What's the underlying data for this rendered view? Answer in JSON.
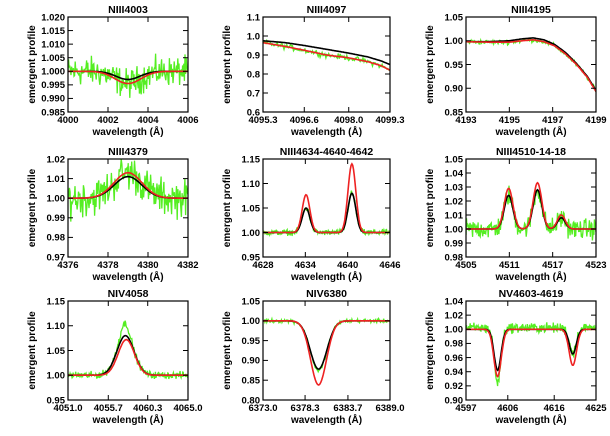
{
  "colors": {
    "observed": "#55ee22",
    "model_black": "#000000",
    "model_red": "#ee2222",
    "frame": "#000000",
    "background": "#ffffff"
  },
  "chart_data": [
    {
      "type": "line",
      "title": "NIII4003",
      "xlabel": "wavelength (Å)",
      "ylabel": "emergent profile",
      "xlim": [
        4000,
        4006
      ],
      "ylim": [
        0.985,
        1.02
      ],
      "xticks": [
        4000,
        4002,
        4004,
        4006
      ],
      "xtick_labels": [
        "4000",
        "4002",
        "4004",
        "4006"
      ],
      "yticks": [
        0.985,
        0.99,
        0.995,
        1.0,
        1.005,
        1.01,
        1.015,
        1.02
      ],
      "ytick_labels": [
        "0.985",
        "0.990",
        "0.995",
        "1.000",
        "1.005",
        "1.010",
        "1.015",
        "1.020"
      ],
      "series": [
        {
          "color": "black",
          "lines": [
            {
              "kind": "gauss",
              "amp": -0.003,
              "center": 4003.0,
              "sigma": 0.6
            }
          ]
        },
        {
          "color": "red",
          "lines": [
            {
              "kind": "gauss",
              "amp": -0.0045,
              "center": 4003.0,
              "sigma": 0.65
            }
          ]
        },
        {
          "color": "green",
          "kind": "noisy",
          "of": "red",
          "noise": 0.0045,
          "dx": 0.03
        }
      ]
    },
    {
      "type": "line",
      "title": "NIII4097",
      "xlabel": "wavelength (Å)",
      "ylabel": "emergent profile",
      "xlim": [
        4095.3,
        4099.3
      ],
      "ylim": [
        0.6,
        1.1
      ],
      "xticks": [
        4095.3,
        4096.6,
        4098.0,
        4099.3
      ],
      "xtick_labels": [
        "4095.3",
        "4096.6",
        "4098.0",
        "4099.3"
      ],
      "yticks": [
        0.6,
        0.7,
        0.8,
        0.9,
        1.0,
        1.1
      ],
      "ytick_labels": [
        "0.6",
        "0.7",
        "0.8",
        "0.9",
        "1.0",
        "1.1"
      ],
      "series": [
        {
          "color": "black",
          "x": [
            4095.3,
            4096.0,
            4096.6,
            4097.3,
            4098.0,
            4098.6,
            4099.0,
            4099.3
          ],
          "y": [
            0.975,
            0.965,
            0.95,
            0.93,
            0.91,
            0.89,
            0.87,
            0.85
          ]
        },
        {
          "color": "red",
          "x": [
            4095.3,
            4096.0,
            4096.6,
            4097.3,
            4098.0,
            4098.6,
            4099.0,
            4099.3
          ],
          "y": [
            0.965,
            0.945,
            0.925,
            0.9,
            0.885,
            0.865,
            0.845,
            0.82
          ]
        },
        {
          "color": "green",
          "kind": "noisy",
          "of": "red",
          "noise": 0.012,
          "dx": 0.03
        }
      ]
    },
    {
      "type": "line",
      "title": "NIII4195",
      "xlabel": "wavelength (Å)",
      "ylabel": "emergent profile",
      "xlim": [
        4193,
        4199
      ],
      "ylim": [
        0.85,
        1.05
      ],
      "xticks": [
        4193,
        4195,
        4197,
        4199
      ],
      "xtick_labels": [
        "4193",
        "4195",
        "4197",
        "4199"
      ],
      "yticks": [
        0.85,
        0.9,
        0.95,
        1.0,
        1.05
      ],
      "ytick_labels": [
        "0.85",
        "0.90",
        "0.95",
        "1.00",
        "1.05"
      ],
      "series": [
        {
          "color": "black",
          "x": [
            4193,
            4194,
            4195,
            4195.6,
            4196.1,
            4196.6,
            4197.1,
            4197.6,
            4198.1,
            4198.6,
            4199
          ],
          "y": [
            0.998,
            0.998,
            1.0,
            1.004,
            1.006,
            1.002,
            0.992,
            0.975,
            0.952,
            0.925,
            0.895
          ]
        },
        {
          "color": "red",
          "x": [
            4193,
            4194,
            4195,
            4195.6,
            4196.1,
            4196.6,
            4197.1,
            4197.6,
            4198.1,
            4198.6,
            4199
          ],
          "y": [
            0.998,
            0.997,
            0.997,
            1.0,
            1.002,
            0.998,
            0.989,
            0.972,
            0.95,
            0.923,
            0.893
          ]
        },
        {
          "color": "green",
          "kind": "noisy",
          "of": "red",
          "noise": 0.004,
          "dx": 0.04
        }
      ]
    },
    {
      "type": "line",
      "title": "NIII4379",
      "xlabel": "wavelength (Å)",
      "ylabel": "emergent profile",
      "xlim": [
        4376,
        4382
      ],
      "ylim": [
        0.97,
        1.02
      ],
      "xticks": [
        4376,
        4378,
        4380,
        4382
      ],
      "xtick_labels": [
        "4376",
        "4378",
        "4380",
        "4382"
      ],
      "yticks": [
        0.97,
        0.98,
        0.99,
        1.0,
        1.01,
        1.02
      ],
      "ytick_labels": [
        "0.97",
        "0.98",
        "0.99",
        "1.00",
        "1.01",
        "1.02"
      ],
      "series": [
        {
          "color": "black",
          "lines": [
            {
              "kind": "gauss",
              "amp": 0.011,
              "center": 4379.0,
              "sigma": 0.7
            }
          ]
        },
        {
          "color": "red",
          "lines": [
            {
              "kind": "gauss",
              "amp": 0.013,
              "center": 4379.0,
              "sigma": 0.7
            }
          ]
        },
        {
          "color": "green",
          "kind": "noisy",
          "of": "red",
          "noise": 0.008,
          "dx": 0.035
        }
      ]
    },
    {
      "type": "line",
      "title": "NIII4634-4640-4642",
      "xlabel": "wavelength (Å)",
      "ylabel": "emergent profile",
      "xlim": [
        4628,
        4646
      ],
      "ylim": [
        0.95,
        1.15
      ],
      "xticks": [
        4628,
        4634,
        4640,
        4646
      ],
      "xtick_labels": [
        "4628",
        "4634",
        "4640",
        "4646"
      ],
      "yticks": [
        0.95,
        1.0,
        1.05,
        1.1,
        1.15
      ],
      "ytick_labels": [
        "0.95",
        "1.00",
        "1.05",
        "1.10",
        "1.15"
      ],
      "series": [
        {
          "color": "black",
          "lines": [
            {
              "kind": "gauss",
              "amp": 0.05,
              "center": 4634.1,
              "sigma": 0.55
            },
            {
              "kind": "gauss",
              "amp": 0.08,
              "center": 4640.6,
              "sigma": 0.55
            }
          ]
        },
        {
          "color": "red",
          "lines": [
            {
              "kind": "gauss",
              "amp": 0.077,
              "center": 4634.1,
              "sigma": 0.55
            },
            {
              "kind": "gauss",
              "amp": 0.14,
              "center": 4640.6,
              "sigma": 0.55
            }
          ]
        },
        {
          "color": "green",
          "kind": "noisy",
          "of": "black",
          "noise": 0.005,
          "dx": 0.07
        }
      ]
    },
    {
      "type": "line",
      "title": "NIII4510-14-18",
      "xlabel": "wavelength (Å)",
      "ylabel": "emergent profile",
      "xlim": [
        4505,
        4523
      ],
      "ylim": [
        0.98,
        1.05
      ],
      "xticks": [
        4505,
        4511,
        4517,
        4523
      ],
      "xtick_labels": [
        "4505",
        "4511",
        "4517",
        "4523"
      ],
      "yticks": [
        0.98,
        0.99,
        1.0,
        1.01,
        1.02,
        1.03,
        1.04,
        1.05
      ],
      "ytick_labels": [
        "0.98",
        "0.99",
        "1.00",
        "1.01",
        "1.02",
        "1.03",
        "1.04",
        "1.05"
      ],
      "series": [
        {
          "color": "black",
          "lines": [
            {
              "kind": "gauss",
              "amp": 0.024,
              "center": 4510.9,
              "sigma": 0.6
            },
            {
              "kind": "gauss",
              "amp": 0.028,
              "center": 4514.9,
              "sigma": 0.6
            },
            {
              "kind": "gauss",
              "amp": 0.008,
              "center": 4518.2,
              "sigma": 0.55
            }
          ]
        },
        {
          "color": "red",
          "lines": [
            {
              "kind": "gauss",
              "amp": 0.029,
              "center": 4510.9,
              "sigma": 0.6
            },
            {
              "kind": "gauss",
              "amp": 0.033,
              "center": 4514.9,
              "sigma": 0.6
            },
            {
              "kind": "gauss",
              "amp": 0.01,
              "center": 4518.2,
              "sigma": 0.55
            }
          ]
        },
        {
          "color": "green",
          "kind": "noisy",
          "of": "black",
          "noise": 0.006,
          "dx": 0.07
        }
      ]
    },
    {
      "type": "line",
      "title": "NIV4058",
      "xlabel": "wavelength (Å)",
      "ylabel": "emergent profile",
      "xlim": [
        4051.0,
        4065.0
      ],
      "ylim": [
        0.95,
        1.15
      ],
      "xticks": [
        4051.0,
        4055.7,
        4060.3,
        4065.0
      ],
      "xtick_labels": [
        "4051.0",
        "4055.7",
        "4060.3",
        "4065.0"
      ],
      "yticks": [
        0.95,
        1.0,
        1.05,
        1.1,
        1.15
      ],
      "ytick_labels": [
        "0.95",
        "1.00",
        "1.05",
        "1.10",
        "1.15"
      ],
      "series": [
        {
          "color": "black",
          "lines": [
            {
              "kind": "gauss",
              "amp": 0.08,
              "center": 4057.7,
              "sigma": 1.0
            }
          ]
        },
        {
          "color": "red",
          "lines": [
            {
              "kind": "gauss",
              "amp": 0.072,
              "center": 4057.8,
              "sigma": 0.95
            }
          ]
        },
        {
          "color": "green",
          "kind": "noisy",
          "of": "black",
          "noise": 0.006,
          "dx": 0.06,
          "bump": [
            4057.6,
            0.025,
            0.5
          ]
        }
      ]
    },
    {
      "type": "line",
      "title": "NIV6380",
      "xlabel": "wavelength (Å)",
      "ylabel": "emergent profile",
      "xlim": [
        6373.0,
        6389.0
      ],
      "ylim": [
        0.8,
        1.05
      ],
      "xticks": [
        6373.0,
        6378.3,
        6383.7,
        6389.0
      ],
      "xtick_labels": [
        "6373.0",
        "6378.3",
        "6383.7",
        "6389.0"
      ],
      "yticks": [
        0.8,
        0.85,
        0.9,
        0.95,
        1.0,
        1.05
      ],
      "ytick_labels": [
        "0.80",
        "0.85",
        "0.90",
        "0.95",
        "1.00",
        "1.05"
      ],
      "series": [
        {
          "color": "black",
          "lines": [
            {
              "kind": "gauss",
              "amp": -0.122,
              "center": 6380.0,
              "sigma": 1.05
            }
          ]
        },
        {
          "color": "red",
          "lines": [
            {
              "kind": "gauss",
              "amp": -0.162,
              "center": 6380.0,
              "sigma": 1.0
            }
          ]
        },
        {
          "color": "green",
          "kind": "noisy",
          "of": "black",
          "noise": 0.004,
          "dx": 0.08,
          "bump": [
            6380.0,
            -0.004,
            0.6
          ]
        }
      ]
    },
    {
      "type": "line",
      "title": "NV4603-4619",
      "xlabel": "wavelength (Å)",
      "ylabel": "emergent profile",
      "xlim": [
        4597,
        4625
      ],
      "ylim": [
        0.9,
        1.04
      ],
      "xticks": [
        4597,
        4606,
        4616,
        4625
      ],
      "xtick_labels": [
        "4597",
        "4606",
        "4616",
        "4625"
      ],
      "yticks": [
        0.9,
        0.92,
        0.94,
        0.96,
        0.98,
        1.0,
        1.02,
        1.04
      ],
      "ytick_labels": [
        "0.90",
        "0.92",
        "0.94",
        "0.96",
        "0.98",
        "1.00",
        "1.02",
        "1.04"
      ],
      "series": [
        {
          "color": "black",
          "lines": [
            {
              "kind": "gauss",
              "amp": -0.058,
              "center": 4603.8,
              "sigma": 0.75
            },
            {
              "kind": "gauss",
              "amp": -0.035,
              "center": 4620.0,
              "sigma": 0.75
            }
          ]
        },
        {
          "color": "red",
          "lines": [
            {
              "kind": "gauss",
              "amp": -0.067,
              "center": 4603.8,
              "sigma": 0.8
            },
            {
              "kind": "gauss",
              "amp": -0.051,
              "center": 4620.0,
              "sigma": 0.8
            }
          ]
        },
        {
          "color": "green",
          "kind": "noisy",
          "of": "black",
          "noise": 0.006,
          "dx": 0.1,
          "offset": 0.002,
          "bump": [
            4603.8,
            -0.02,
            0.5
          ]
        }
      ]
    }
  ]
}
